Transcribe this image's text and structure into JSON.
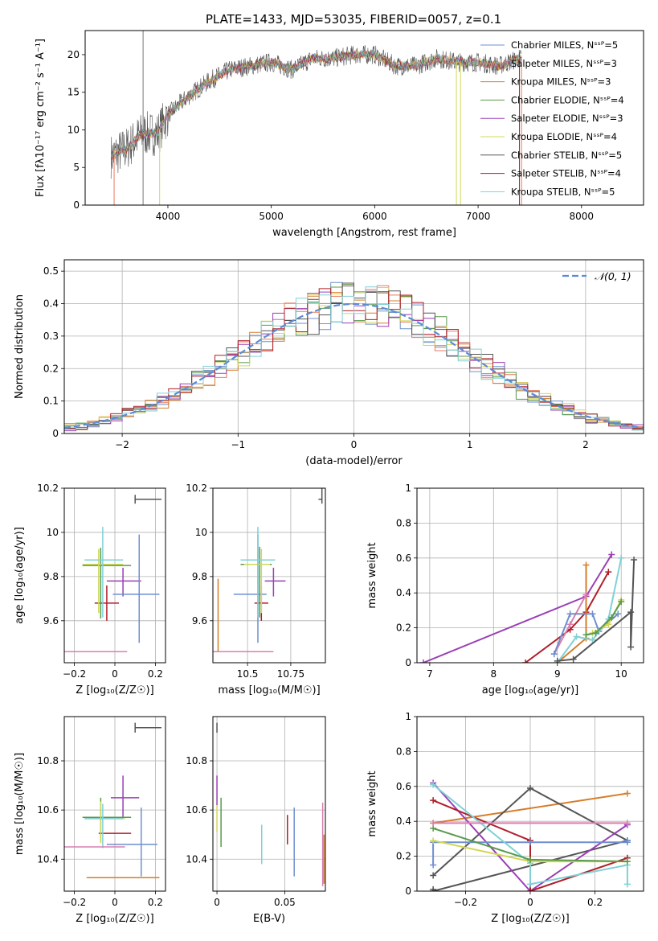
{
  "figure_title": "PLATE=1433, MJD=53035, FIBERID=0057, z=0.1",
  "model_colors": [
    "#6e8fcf",
    "#e8795d",
    "#d67d29",
    "#5a9a4a",
    "#9a3fb5",
    "#d2d85a",
    "#555555",
    "#b01e2a",
    "#7fd1d6"
  ],
  "chart_data": [
    {
      "id": "spectrum",
      "type": "line",
      "xlabel": "wavelength [Angstrom, rest frame]",
      "ylabel": "Flux [fλ10⁻¹⁷ erg cm⁻² s⁻¹ A⁻¹]",
      "xlim": [
        3200,
        8600
      ],
      "ylim": [
        0,
        23.2
      ],
      "xticks": [
        4000,
        5000,
        6000,
        7000,
        8000
      ],
      "yticks": [
        0,
        5,
        10,
        15,
        20
      ],
      "grid": false,
      "legend_position": "right",
      "vline": 3760,
      "series": [
        {
          "name": "Chabrier MILES, N_SSP=5",
          "color": "#6e8fcf"
        },
        {
          "name": "Salpeter MILES, N_SSP=3",
          "color": "#e8795d"
        },
        {
          "name": "Kroupa MILES, N_SSP=3",
          "color": "#d67d29"
        },
        {
          "name": "Chabrier ELODIE, N_SSP=4",
          "color": "#5a9a4a"
        },
        {
          "name": "Salpeter ELODIE, N_SSP=3",
          "color": "#9a3fb5"
        },
        {
          "name": "Kroupa ELODIE, N_SSP=4",
          "color": "#d2d85a"
        },
        {
          "name": "Chabrier STELIB, N_SSP=5",
          "color": "#555555"
        },
        {
          "name": "Salpeter STELIB, N_SSP=4",
          "color": "#b01e2a"
        },
        {
          "name": "Kroupa STELIB, N_SSP=5",
          "color": "#7fd1d6"
        }
      ],
      "continuum": {
        "x": [
          3450,
          3600,
          3750,
          3900,
          4000,
          4200,
          4400,
          4600,
          4800,
          5000,
          5200,
          5400,
          5600,
          5800,
          6000,
          6200,
          6400,
          6600,
          6800,
          7000,
          7200,
          7400
        ],
        "y": [
          6.5,
          7.5,
          9.5,
          9.5,
          12.0,
          14.5,
          16.5,
          18.0,
          18.5,
          19.0,
          18.0,
          19.5,
          19.5,
          20.0,
          20.0,
          18.5,
          18.5,
          19.5,
          19.0,
          19.0,
          18.5,
          19.5
        ]
      },
      "model_dropouts": [
        [
          3480,
          "#e8795d"
        ],
        [
          3920,
          "#d2d85a"
        ],
        [
          6790,
          "#d2d85a"
        ],
        [
          6830,
          "#d2d85a"
        ],
        [
          7420,
          "#e8795d"
        ],
        [
          7400,
          "#b01e2a"
        ]
      ]
    },
    {
      "id": "residuals",
      "type": "step",
      "xlabel": "(data-model)/error",
      "ylabel": "Normed distribution",
      "xlim": [
        -2.5,
        2.5
      ],
      "ylim": [
        0,
        0.535
      ],
      "xticks": [
        -2,
        -1,
        0,
        1,
        2
      ],
      "yticks": [
        0.0,
        0.1,
        0.2,
        0.3,
        0.4,
        0.5
      ],
      "grid": true,
      "legend_position": "top-right",
      "reference_label": "𝒩(0, 1)",
      "reference_color": "#5b8bd6",
      "bin_width": 0.1
    },
    {
      "id": "age_vs_Z",
      "type": "errorbar",
      "xlabel": "Z [log₁₀(Z/Z☉)]",
      "ylabel": "age  [log₁₀(age/yr)]",
      "xlim": [
        -0.25,
        0.25
      ],
      "ylim": [
        9.41,
        10.2
      ],
      "xticks": [
        -0.2,
        0.0,
        0.2
      ],
      "yticks": [
        9.6,
        9.8,
        10.0,
        10.2
      ],
      "grid": true,
      "points": [
        {
          "x": -0.04,
          "y": 9.68,
          "xe": [
            0.06,
            0.06
          ],
          "ye": [
            0.08,
            0.08
          ],
          "color": "#b01e2a"
        },
        {
          "x": 0.04,
          "y": 9.78,
          "xe": [
            0.08,
            0.09
          ],
          "ye": [
            0.07,
            0.06
          ],
          "color": "#9a3fb5"
        },
        {
          "x": 0.12,
          "y": 9.72,
          "xe": [
            0.13,
            0.1
          ],
          "ye": [
            0.22,
            0.27
          ],
          "color": "#6e8fcf"
        },
        {
          "x": -0.07,
          "y": 9.85,
          "xe": [
            0.09,
            0.15
          ],
          "ye": [
            0.24,
            0.08
          ],
          "color": "#5a9a4a"
        },
        {
          "x": -0.08,
          "y": 9.855,
          "xe": [
            0.08,
            0.12
          ],
          "ye": [
            0.22,
            0.07
          ],
          "color": "#d2d85a"
        },
        {
          "x": -0.06,
          "y": 9.875,
          "xe": [
            0.09,
            0.1
          ],
          "ye": [
            0.26,
            0.15
          ],
          "color": "#7fd1d6"
        },
        {
          "x": 0.04,
          "y": 9.46,
          "xe": [
            0.25,
            0.02
          ],
          "ye": [
            0,
            0
          ],
          "color": "#d67d29"
        },
        {
          "x": 0.0,
          "y": 9.46,
          "xe": [
            0.25,
            0.06
          ],
          "ye": [
            0,
            0
          ],
          "color": "#d97fb0"
        },
        {
          "x": 0.1,
          "y": 10.15,
          "xe": [
            0.0,
            0.13
          ],
          "ye": [
            0.02,
            0.02
          ],
          "color": "#555555"
        }
      ]
    },
    {
      "id": "age_vs_mass",
      "type": "errorbar",
      "xlabel": "mass [log₁₀(M/M☉)]",
      "ylabel": "",
      "xlim": [
        10.3,
        10.95
      ],
      "ylim": [
        9.41,
        10.2
      ],
      "xticks": [
        10.5,
        10.75
      ],
      "yticks": [
        9.6,
        9.8,
        10.0,
        10.2
      ],
      "grid": true,
      "points": [
        {
          "x": 10.58,
          "y": 9.68,
          "xe": [
            0.04,
            0.04
          ],
          "ye": [
            0.08,
            0.08
          ],
          "color": "#b01e2a"
        },
        {
          "x": 10.65,
          "y": 9.78,
          "xe": [
            0.05,
            0.07
          ],
          "ye": [
            0.07,
            0.06
          ],
          "color": "#9a3fb5"
        },
        {
          "x": 10.56,
          "y": 9.72,
          "xe": [
            0.14,
            0.05
          ],
          "ye": [
            0.22,
            0.27
          ],
          "color": "#6e8fcf"
        },
        {
          "x": 10.57,
          "y": 9.855,
          "xe": [
            0.11,
            0.07
          ],
          "ye": [
            0.24,
            0.08
          ],
          "color": "#5a9a4a"
        },
        {
          "x": 10.58,
          "y": 9.855,
          "xe": [
            0.1,
            0.05
          ],
          "ye": [
            0.22,
            0.07
          ],
          "color": "#d2d85a"
        },
        {
          "x": 10.56,
          "y": 9.875,
          "xe": [
            0.1,
            0.1
          ],
          "ye": [
            0.26,
            0.15
          ],
          "color": "#7fd1d6"
        },
        {
          "x": 10.33,
          "y": 9.46,
          "xe": [
            0.03,
            0.15
          ],
          "ye": [
            0.0,
            0.33
          ],
          "color": "#d67d29"
        },
        {
          "x": 10.45,
          "y": 9.46,
          "xe": [
            0.15,
            0.2
          ],
          "ye": [
            0,
            0
          ],
          "color": "#d97fb0"
        },
        {
          "x": 10.93,
          "y": 10.15,
          "xe": [
            0.02,
            0.0
          ],
          "ye": [
            0.02,
            0.05
          ],
          "color": "#555555"
        }
      ]
    },
    {
      "id": "mass_weight_vs_age",
      "type": "line",
      "xlabel": "age  [log₁₀(age/yr)]",
      "ylabel": "mass weight",
      "xlim": [
        6.8,
        10.35
      ],
      "ylim": [
        0,
        1.0
      ],
      "xticks": [
        7,
        8,
        9,
        10
      ],
      "yticks": [
        0.0,
        0.2,
        0.4,
        0.6,
        0.8,
        1.0
      ],
      "grid": true,
      "series": [
        {
          "color": "#9a3fb5",
          "x": [
            6.9,
            9.45,
            9.85
          ],
          "y": [
            0.0,
            0.38,
            0.62
          ]
        },
        {
          "color": "#b01e2a",
          "x": [
            8.5,
            9.2,
            9.45,
            9.8
          ],
          "y": [
            0.0,
            0.19,
            0.29,
            0.52
          ]
        },
        {
          "color": "#d67d29",
          "x": [
            9.0,
            9.45,
            9.45
          ],
          "y": [
            0.0,
            0.14,
            0.56
          ]
        },
        {
          "color": "#d97fb0",
          "x": [
            8.95,
            9.2,
            9.45
          ],
          "y": [
            0.05,
            0.22,
            0.39
          ]
        },
        {
          "color": "#6e8fcf",
          "x": [
            8.95,
            9.2,
            9.55,
            9.65,
            9.95
          ],
          "y": [
            0.05,
            0.28,
            0.28,
            0.18,
            0.28
          ]
        },
        {
          "color": "#7fd1d6",
          "x": [
            9.0,
            9.3,
            9.55,
            9.8,
            10.0
          ],
          "y": [
            0.0,
            0.15,
            0.13,
            0.25,
            0.6
          ]
        },
        {
          "color": "#d2d85a",
          "x": [
            9.45,
            9.55,
            9.8,
            10.0
          ],
          "y": [
            0.16,
            0.17,
            0.22,
            0.36
          ]
        },
        {
          "color": "#5a9a4a",
          "x": [
            9.45,
            9.6,
            9.85,
            10.0
          ],
          "y": [
            0.16,
            0.17,
            0.26,
            0.35
          ]
        },
        {
          "color": "#555555",
          "x": [
            9.0,
            9.25,
            10.15,
            10.15,
            10.2
          ],
          "y": [
            0.01,
            0.02,
            0.29,
            0.09,
            0.59
          ]
        }
      ]
    },
    {
      "id": "mass_vs_Z",
      "type": "errorbar",
      "xlabel": "Z [log₁₀(Z/Z☉)]",
      "ylabel": "mass [log₁₀(M/M☉)]",
      "xlim": [
        -0.25,
        0.25
      ],
      "ylim": [
        10.27,
        10.98
      ],
      "xticks": [
        -0.2,
        0.0,
        0.2
      ],
      "yticks": [
        10.4,
        10.6,
        10.8
      ],
      "grid": true,
      "points": [
        {
          "x": -0.01,
          "y": 10.505,
          "xe": [
            0.07,
            0.09
          ],
          "ye": [
            0,
            0
          ],
          "color": "#b01e2a"
        },
        {
          "x": 0.04,
          "y": 10.65,
          "xe": [
            0.06,
            0.08
          ],
          "ye": [
            0.08,
            0.09
          ],
          "color": "#9a3fb5"
        },
        {
          "x": 0.13,
          "y": 10.46,
          "xe": [
            0.17,
            0.08
          ],
          "ye": [
            0.13,
            0.15
          ],
          "color": "#6e8fcf"
        },
        {
          "x": -0.07,
          "y": 10.57,
          "xe": [
            0.09,
            0.15
          ],
          "ye": [
            0.1,
            0.08
          ],
          "color": "#5a9a4a"
        },
        {
          "x": -0.07,
          "y": 10.565,
          "xe": [
            0.08,
            0.12
          ],
          "ye": [
            0.1,
            0.07
          ],
          "color": "#d2d85a"
        },
        {
          "x": -0.06,
          "y": 10.565,
          "xe": [
            0.09,
            0.1
          ],
          "ye": [
            0.12,
            0.06
          ],
          "color": "#7fd1d6"
        },
        {
          "x": 0.04,
          "y": 10.325,
          "xe": [
            0.18,
            0.18
          ],
          "ye": [
            0,
            0
          ],
          "color": "#d67d29"
        },
        {
          "x": 0.0,
          "y": 10.45,
          "xe": [
            0.25,
            0.05
          ],
          "ye": [
            0,
            0
          ],
          "color": "#d97fb0"
        },
        {
          "x": 0.1,
          "y": 10.935,
          "xe": [
            0.0,
            0.13
          ],
          "ye": [
            0.02,
            0.02
          ],
          "color": "#555555"
        }
      ]
    },
    {
      "id": "mass_vs_EBV",
      "type": "errorbar",
      "xlabel": "E(B-V)",
      "ylabel": "",
      "xlim": [
        -0.003,
        0.08
      ],
      "ylim": [
        10.27,
        10.98
      ],
      "xticks": [
        0.0,
        0.05
      ],
      "yticks": [
        10.4,
        10.6,
        10.8
      ],
      "grid": true,
      "points": [
        {
          "x": 0.0,
          "y": 10.935,
          "xe": [
            0,
            0
          ],
          "ye": [
            0.02,
            0.02
          ],
          "color": "#555555"
        },
        {
          "x": 0.0,
          "y": 10.68,
          "xe": [
            0,
            0
          ],
          "ye": [
            0.06,
            0.06
          ],
          "color": "#9a3fb5"
        },
        {
          "x": 0.0,
          "y": 10.56,
          "xe": [
            0,
            0
          ],
          "ye": [
            0.05,
            0.06
          ],
          "color": "#d2d85a"
        },
        {
          "x": 0.003,
          "y": 10.55,
          "xe": [
            0,
            0
          ],
          "ye": [
            0.1,
            0.1
          ],
          "color": "#5a9a4a"
        },
        {
          "x": 0.033,
          "y": 10.46,
          "xe": [
            0,
            0
          ],
          "ye": [
            0.08,
            0.08
          ],
          "color": "#7fd1d6"
        },
        {
          "x": 0.052,
          "y": 10.52,
          "xe": [
            0,
            0
          ],
          "ye": [
            0.06,
            0.06
          ],
          "color": "#b01e2a"
        },
        {
          "x": 0.057,
          "y": 10.47,
          "xe": [
            0,
            0
          ],
          "ye": [
            0.14,
            0.14
          ],
          "color": "#6e8fcf"
        },
        {
          "x": 0.078,
          "y": 10.46,
          "xe": [
            0,
            0
          ],
          "ye": [
            0.17,
            0.17
          ],
          "color": "#d97fb0"
        },
        {
          "x": 0.079,
          "y": 10.4,
          "xe": [
            0,
            0
          ],
          "ye": [
            0.1,
            0.1
          ],
          "color": "#d67d29"
        }
      ]
    },
    {
      "id": "mass_weight_vs_Z",
      "type": "line",
      "xlabel": "Z [log₁₀(Z/Z☉)]",
      "ylabel": "mass weight",
      "xlim": [
        -0.35,
        0.35
      ],
      "ylim": [
        0,
        1.0
      ],
      "xticks": [
        -0.2,
        0.0,
        0.2
      ],
      "yticks": [
        0.0,
        0.2,
        0.4,
        0.6,
        0.8,
        1.0
      ],
      "grid": true,
      "series": [
        {
          "color": "#d67d29",
          "x": [
            -0.3,
            0.3
          ],
          "y": [
            0.39,
            0.56
          ]
        },
        {
          "color": "#555555",
          "x": [
            -0.3,
            0.0,
            0.3,
            -0.3,
            -0.3
          ],
          "y": [
            0.09,
            0.59,
            0.29,
            0.0,
            0.01
          ]
        },
        {
          "color": "#9a3fb5",
          "x": [
            -0.3,
            0.0,
            0.3
          ],
          "y": [
            0.62,
            0.0,
            0.38
          ]
        },
        {
          "color": "#b01e2a",
          "x": [
            -0.3,
            0.0,
            0.0,
            0.3
          ],
          "y": [
            0.52,
            0.29,
            0.0,
            0.19
          ]
        },
        {
          "color": "#6e8fcf",
          "x": [
            -0.3,
            -0.3,
            0.0,
            0.3,
            0.3
          ],
          "y": [
            0.15,
            0.28,
            0.28,
            0.28,
            0.29
          ]
        },
        {
          "color": "#7fd1d6",
          "x": [
            -0.3,
            0.0,
            0.0,
            0.3,
            0.3
          ],
          "y": [
            0.61,
            0.16,
            0.04,
            0.15,
            0.04
          ]
        },
        {
          "color": "#d2d85a",
          "x": [
            -0.3,
            0.0,
            0.3
          ],
          "y": [
            0.29,
            0.17,
            0.17
          ]
        },
        {
          "color": "#5a9a4a",
          "x": [
            -0.3,
            0.0,
            0.3
          ],
          "y": [
            0.36,
            0.18,
            0.17
          ]
        },
        {
          "color": "#d97fb0",
          "x": [
            -0.3,
            0.3
          ],
          "y": [
            0.39,
            0.39
          ]
        }
      ]
    }
  ]
}
